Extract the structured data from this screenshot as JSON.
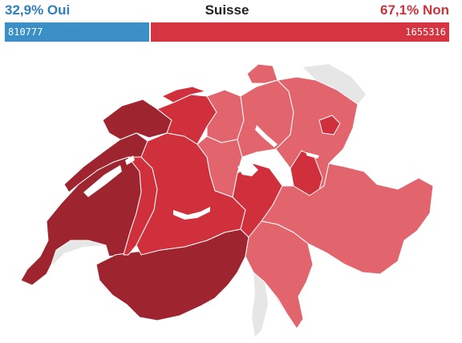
{
  "header": {
    "title": "Suisse",
    "yes_label": "32,9% Oui",
    "no_label": "67,1% Non"
  },
  "results": {
    "yes_votes": "810777",
    "no_votes": "1655316",
    "yes_share": 0.329
  },
  "colors": {
    "yes": "#3a8fc6",
    "no": "#d63440",
    "no_strong": "#9e2530",
    "no_medium": "#d0303c",
    "no_light": "#e2646d",
    "lakes": "#e6e6e6",
    "border": "#ffffff"
  },
  "map": {
    "country": "Suisse",
    "regions": [
      {
        "id": "vaud-geneve",
        "color_class": "no_strong"
      },
      {
        "id": "valais",
        "color_class": "no_strong"
      },
      {
        "id": "jura-north",
        "color_class": "no_strong"
      },
      {
        "id": "neuchatel",
        "color_class": "no_strong"
      },
      {
        "id": "fribourg",
        "color_class": "no_medium"
      },
      {
        "id": "bern",
        "color_class": "no_medium"
      },
      {
        "id": "jura-bernois",
        "color_class": "no_medium"
      },
      {
        "id": "basel",
        "color_class": "no_medium"
      },
      {
        "id": "aargau",
        "color_class": "no_light"
      },
      {
        "id": "luzern",
        "color_class": "no_light"
      },
      {
        "id": "central",
        "color_class": "no_medium"
      },
      {
        "id": "zurich",
        "color_class": "no_light"
      },
      {
        "id": "thurgau-stgallen",
        "color_class": "no_light"
      },
      {
        "id": "glarus",
        "color_class": "no_medium"
      },
      {
        "id": "graubunden",
        "color_class": "no_light"
      },
      {
        "id": "ticino",
        "color_class": "no_light"
      },
      {
        "id": "appenzell",
        "color_class": "no_medium"
      },
      {
        "id": "schaffhausen",
        "color_class": "no_light"
      }
    ]
  }
}
